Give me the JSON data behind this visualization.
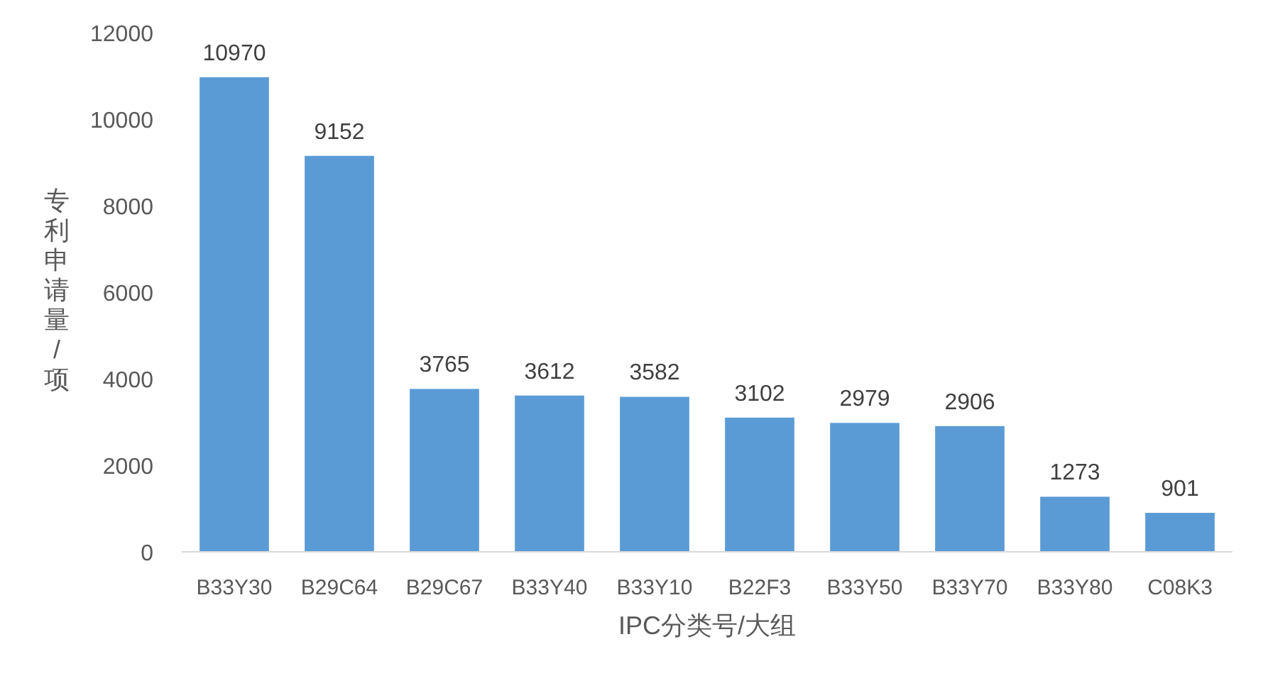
{
  "chart_data": {
    "type": "bar",
    "xlabel": "IPC分类号/大组",
    "ylabel": "专利申请量/项",
    "categories": [
      "B33Y30",
      "B29C64",
      "B29C67",
      "B33Y40",
      "B33Y10",
      "B22F3",
      "B33Y50",
      "B33Y70",
      "B33Y80",
      "C08K3"
    ],
    "values": [
      10970,
      9152,
      3765,
      3612,
      3582,
      3102,
      2979,
      2906,
      1273,
      901
    ],
    "color": "#5b9bd5",
    "ylim": [
      0,
      12000
    ],
    "yticks": [
      0,
      2000,
      4000,
      6000,
      8000,
      10000,
      12000
    ],
    "data_labels": true,
    "grid": false
  }
}
